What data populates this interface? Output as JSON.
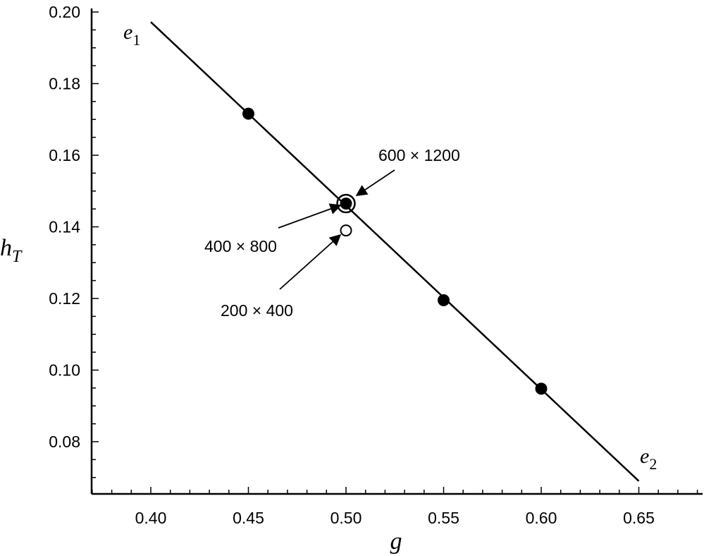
{
  "chart_data": {
    "type": "scatter",
    "title": "",
    "xlabel": "g",
    "ylabel": {
      "main": "h",
      "sub": "T"
    },
    "xlim": [
      0.37,
      0.68
    ],
    "ylim": [
      0.067,
      0.2
    ],
    "xticks": [
      "0.40",
      "0.45",
      "0.50",
      "0.55",
      "0.60",
      "0.65"
    ],
    "yticks": [
      "0.08",
      "0.10",
      "0.12",
      "0.14",
      "0.16",
      "0.18",
      "0.20"
    ],
    "grid": false,
    "line": {
      "x": [
        0.4,
        0.65
      ],
      "y": [
        0.1972,
        0.069
      ],
      "start_label": {
        "main": "e",
        "sub": "1"
      },
      "end_label": {
        "main": "e",
        "sub": "2"
      }
    },
    "series": [
      {
        "marker": "filled",
        "x": [
          0.45,
          0.5,
          0.55,
          0.6
        ],
        "y": [
          0.1716,
          0.1465,
          0.1195,
          0.0948
        ]
      },
      {
        "marker": "open",
        "x": [
          0.5,
          0.5
        ],
        "y": [
          0.1465,
          0.139
        ]
      }
    ],
    "annotations": [
      {
        "text": "600 × 1200"
      },
      {
        "text": "400 × 800"
      },
      {
        "text": "200 × 400"
      }
    ]
  }
}
